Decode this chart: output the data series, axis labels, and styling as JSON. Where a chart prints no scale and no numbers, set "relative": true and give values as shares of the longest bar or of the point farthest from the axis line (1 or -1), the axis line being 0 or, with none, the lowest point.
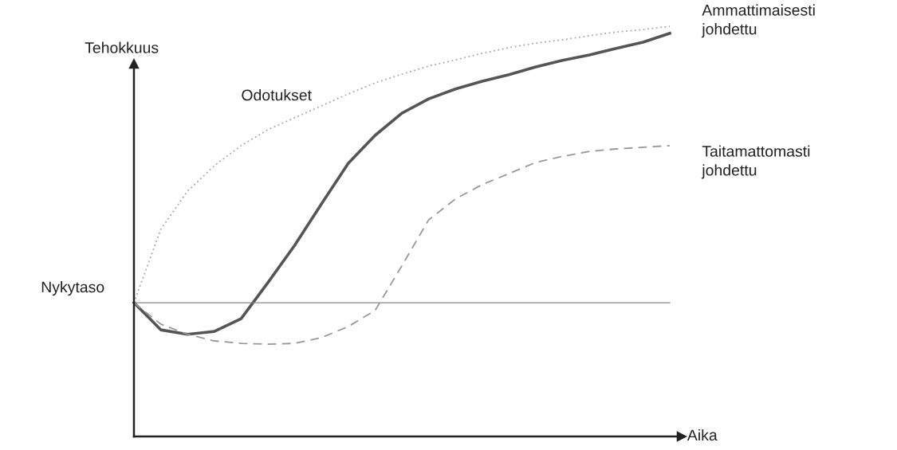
{
  "chart_data": {
    "type": "line",
    "relative": true,
    "xlabel": "Aika",
    "ylabel": "Tehokkuus",
    "grid": false,
    "legend": false,
    "marker": "none",
    "categories": [
      null,
      null,
      null,
      null,
      null,
      null,
      null,
      null,
      null,
      null,
      null,
      null,
      null,
      null,
      null,
      null,
      null,
      null,
      null,
      null,
      null
    ],
    "series": [
      {
        "name": "Odotukset",
        "color": "#aaaaaa",
        "line_style": "dotted",
        "values": [
          0.326,
          0.505,
          0.598,
          0.66,
          0.709,
          0.748,
          0.777,
          0.806,
          0.835,
          0.862,
          0.883,
          0.903,
          0.918,
          0.934,
          0.948,
          0.959,
          0.967,
          0.977,
          0.986,
          0.992,
          1.0
        ]
      },
      {
        "name": "Ammattimaisesti johdettu",
        "color": "#555555",
        "line_style": "solid",
        "values": [
          0.326,
          0.26,
          0.249,
          0.256,
          0.287,
          0.375,
          0.466,
          0.567,
          0.666,
          0.734,
          0.788,
          0.823,
          0.847,
          0.866,
          0.882,
          0.901,
          0.917,
          0.93,
          0.946,
          0.961,
          0.983
        ]
      },
      {
        "name": "Taitamattomasti johdettu",
        "color": "#999999",
        "line_style": "dashed",
        "values": [
          0.326,
          0.274,
          0.249,
          0.233,
          0.227,
          0.225,
          0.227,
          0.241,
          0.268,
          0.307,
          0.416,
          0.528,
          0.579,
          0.614,
          0.641,
          0.668,
          0.683,
          0.695,
          0.701,
          0.705,
          0.709
        ]
      }
    ],
    "ref_lines": [
      {
        "axis": "y",
        "value": 0.326,
        "label": "Nykytaso",
        "color": "#888888",
        "line_style": "solid"
      }
    ]
  }
}
